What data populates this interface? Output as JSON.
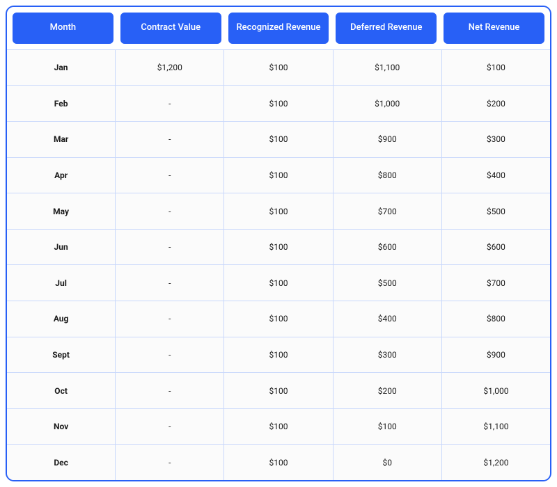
{
  "table": {
    "type": "table",
    "columns": [
      "Month",
      "Contract Value",
      "Recognized Revenue",
      "Deferred Revenue",
      "Net Revenue"
    ],
    "rows": [
      [
        "Jan",
        "$1,200",
        "$100",
        "$1,100",
        "$100"
      ],
      [
        "Feb",
        "-",
        "$100",
        "$1,000",
        "$200"
      ],
      [
        "Mar",
        "-",
        "$100",
        "$900",
        "$300"
      ],
      [
        "Apr",
        "-",
        "$100",
        "$800",
        "$400"
      ],
      [
        "May",
        "-",
        "$100",
        "$700",
        "$500"
      ],
      [
        "Jun",
        "-",
        "$100",
        "$600",
        "$600"
      ],
      [
        "Jul",
        "-",
        "$100",
        "$500",
        "$700"
      ],
      [
        "Aug",
        "-",
        "$100",
        "$400",
        "$800"
      ],
      [
        "Sept",
        "-",
        "$100",
        "$300",
        "$900"
      ],
      [
        "Oct",
        "-",
        "$100",
        "$200",
        "$1,000"
      ],
      [
        "Nov",
        "-",
        "$100",
        "$100",
        "$1,100"
      ],
      [
        "Dec",
        "-",
        "$100",
        "$0",
        "$1,200"
      ]
    ],
    "header_bg_color": "#2860f6",
    "header_text_color": "#ffffff",
    "border_color": "#2860f6",
    "cell_border_color": "#c9d8fb",
    "body_bg_color": "#fbfbfb",
    "header_fontsize": 13,
    "cell_fontsize": 12,
    "month_fontweight": 700
  }
}
